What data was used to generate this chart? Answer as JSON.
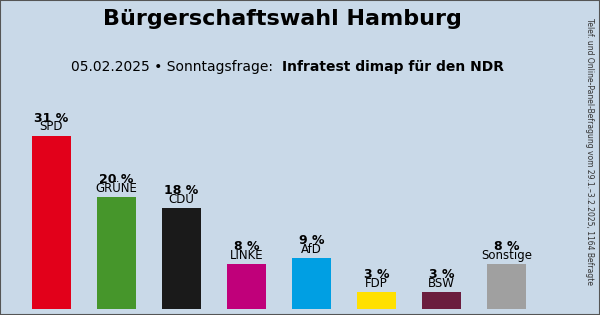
{
  "title": "Bürgerschaftswahl Hamburg",
  "subtitle_plain": "05.02.2025 • Sonntagsfrage:  ",
  "subtitle_bold": "Infratest dimap für den NDR",
  "sidebar_text": "Telef. und Online-Panel-Befragung vom 29.1.–3.2.2025, 1164 Befragte",
  "parties": [
    "SPD",
    "GRÜNE",
    "CDU",
    "LINKE",
    "AfD",
    "FDP",
    "BSW",
    "Sonstige"
  ],
  "values": [
    31,
    20,
    18,
    8,
    9,
    3,
    3,
    8
  ],
  "colors": [
    "#e2001a",
    "#46962b",
    "#1a1a1a",
    "#c0007a",
    "#009fe3",
    "#ffe000",
    "#6b1d3e",
    "#a0a0a0"
  ],
  "bg_color": "#c9d9e8",
  "label_color": "#000000",
  "title_fontsize": 16,
  "subtitle_fontsize": 10,
  "bar_label_fontsize": 9,
  "ylim": [
    0,
    35
  ]
}
